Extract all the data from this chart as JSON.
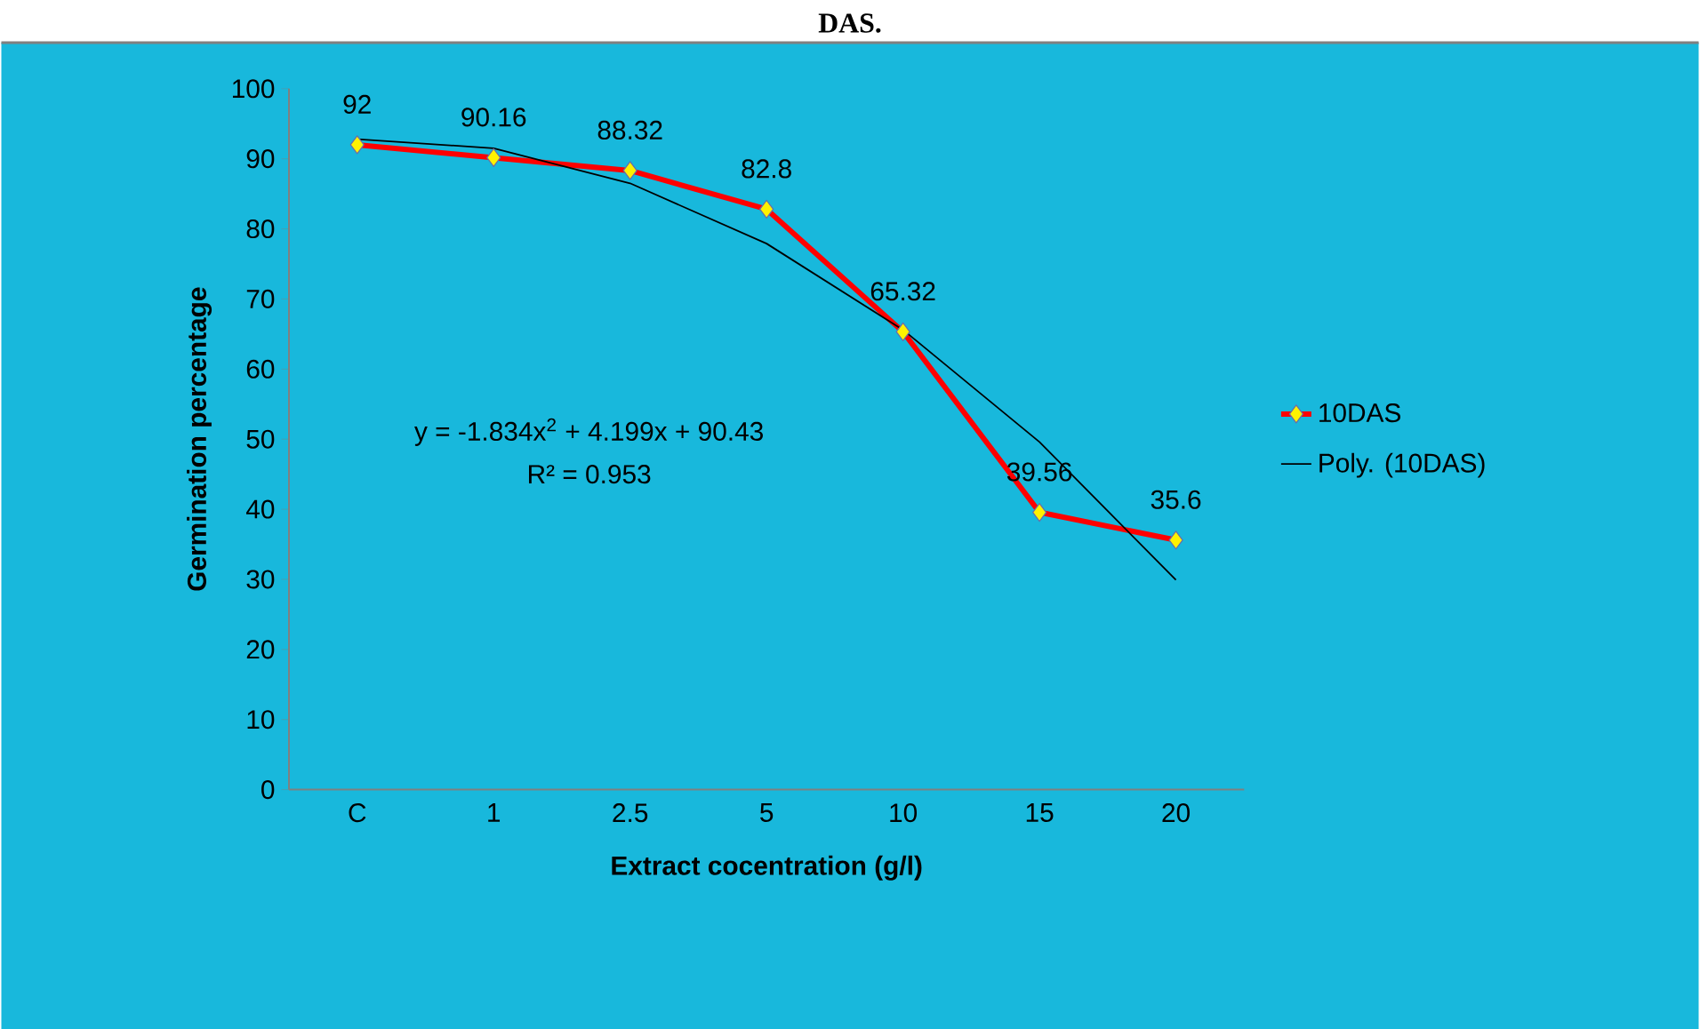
{
  "chart_data": {
    "type": "line",
    "title": "DAS.",
    "xlabel": "Extract cocentration (g/l)",
    "ylabel": "Germination percentage",
    "categories": [
      "C",
      "1",
      "2.5",
      "5",
      "10",
      "15",
      "20"
    ],
    "series": [
      {
        "name": "10DAS",
        "color": "#ff0000",
        "marker": "diamond",
        "values": [
          92,
          90.16,
          88.32,
          82.8,
          65.32,
          39.56,
          35.6
        ],
        "value_labels": [
          "92",
          "90.16",
          "88.32",
          "82.8",
          "65.32",
          "39.56",
          "35.6"
        ]
      },
      {
        "name": "Poly. (10DAS)",
        "color": "#000000",
        "marker": "none",
        "values": [
          92.8,
          91.5,
          86.5,
          77.9,
          65.6,
          49.6,
          29.9
        ]
      }
    ],
    "ylim": [
      0,
      100
    ],
    "yticks": [
      0,
      10,
      20,
      30,
      40,
      50,
      60,
      70,
      80,
      90,
      100
    ],
    "annotations": [
      "y = -1.834x$^{2}$ + 4.199x + 90.43",
      "R² = 0.953"
    ],
    "legend": "right",
    "grid": false
  }
}
